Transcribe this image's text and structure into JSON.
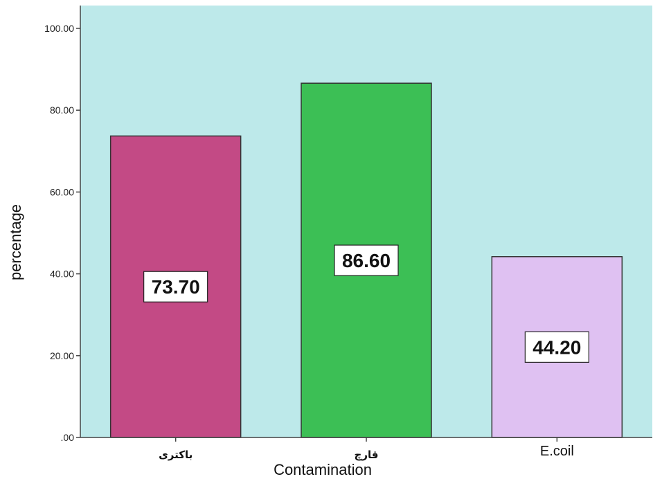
{
  "chart_data": {
    "type": "bar",
    "categories": [
      "باکتری",
      "قارچ",
      "E.coil"
    ],
    "values": [
      73.7,
      86.6,
      44.2
    ],
    "value_labels": [
      "73.70",
      "86.60",
      "44.20"
    ],
    "bar_colors": [
      "#c34a85",
      "#3cbf55",
      "#dfc1f2"
    ],
    "xlabel": "Contamination",
    "ylabel": "percentage",
    "ylim": [
      0,
      105
    ],
    "yticks": [
      0,
      20,
      40,
      60,
      80,
      100
    ],
    "ytick_labels": [
      ".00",
      "20.00",
      "40.00",
      "60.00",
      "80.00",
      "100.00"
    ],
    "plot_background": "#bde9ea",
    "grid": false
  }
}
